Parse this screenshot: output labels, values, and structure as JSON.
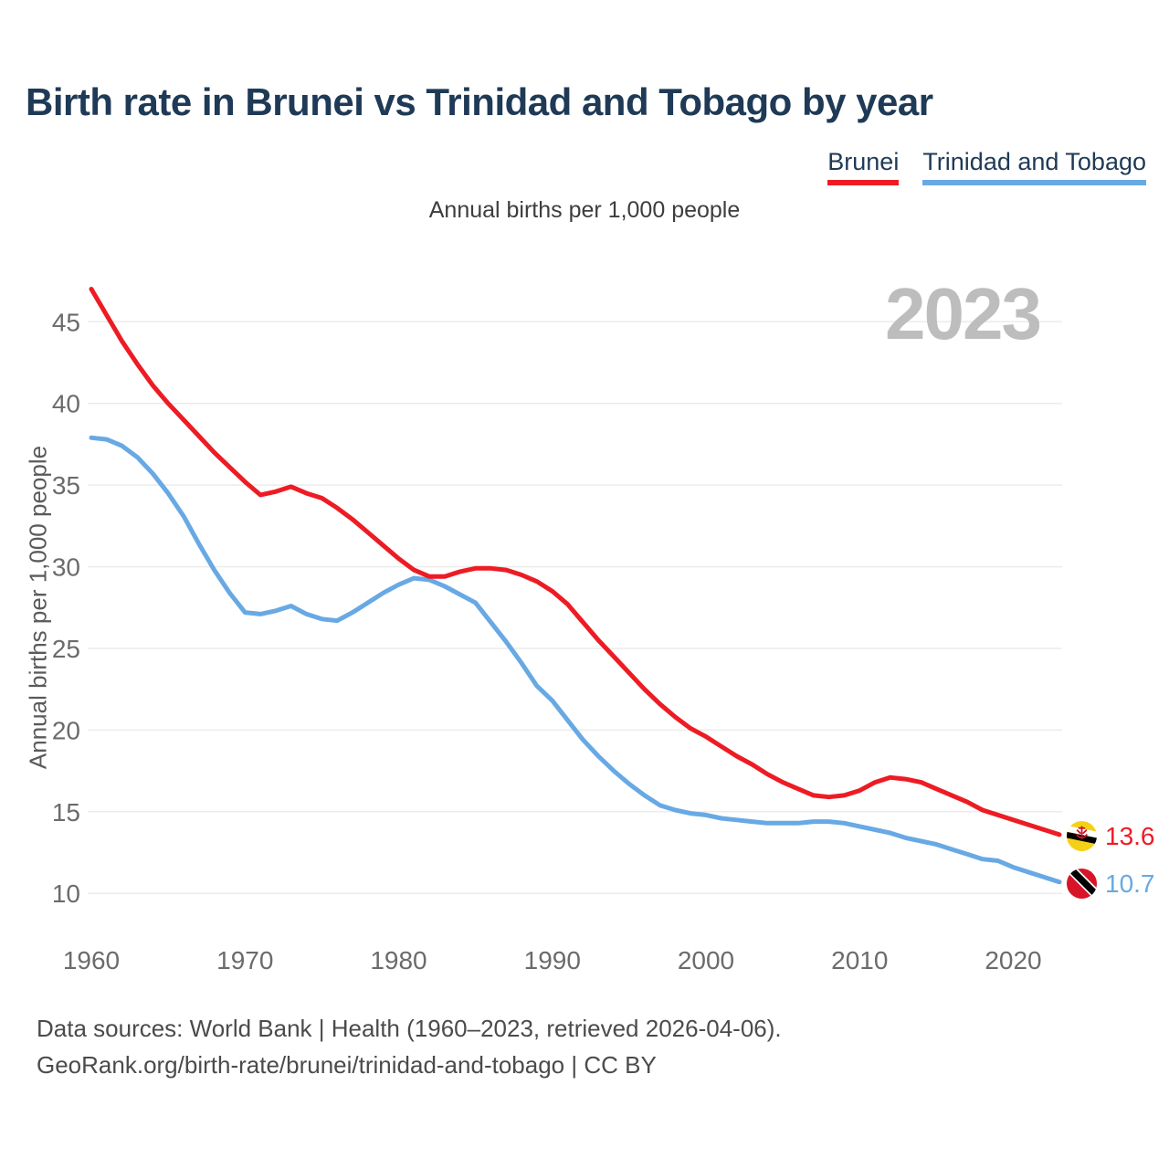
{
  "chart_data": {
    "type": "line",
    "title": "Birth rate in Brunei vs Trinidad and Tobago by year",
    "subtitle": "Annual births per 1,000 people",
    "ylabel": "Annual births per 1,000 people",
    "xlabel": "",
    "watermark_year": "2023",
    "grid": true,
    "legend_position": "top-right",
    "xlim": [
      1960,
      2023
    ],
    "ylim": [
      9,
      48
    ],
    "xticks": [
      1960,
      1970,
      1980,
      1990,
      2000,
      2010,
      2020
    ],
    "yticks": [
      10,
      15,
      20,
      25,
      30,
      35,
      40,
      45
    ],
    "x": [
      1960,
      1961,
      1962,
      1963,
      1964,
      1965,
      1966,
      1967,
      1968,
      1969,
      1970,
      1971,
      1972,
      1973,
      1974,
      1975,
      1976,
      1977,
      1978,
      1979,
      1980,
      1981,
      1982,
      1983,
      1984,
      1985,
      1986,
      1987,
      1988,
      1989,
      1990,
      1991,
      1992,
      1993,
      1994,
      1995,
      1996,
      1997,
      1998,
      1999,
      2000,
      2001,
      2002,
      2003,
      2004,
      2005,
      2006,
      2007,
      2008,
      2009,
      2010,
      2011,
      2012,
      2013,
      2014,
      2015,
      2016,
      2017,
      2018,
      2019,
      2020,
      2021,
      2022,
      2023
    ],
    "series": [
      {
        "name": "Brunei",
        "color": "#ed1c24",
        "end_label": "13.6",
        "end_value": 13.6,
        "flag": "brunei",
        "values": [
          47.0,
          45.4,
          43.8,
          42.4,
          41.1,
          40.0,
          39.0,
          38.0,
          37.0,
          36.1,
          35.2,
          34.4,
          34.6,
          34.9,
          34.5,
          34.2,
          33.6,
          32.9,
          32.1,
          31.3,
          30.5,
          29.8,
          29.4,
          29.4,
          29.7,
          29.9,
          29.9,
          29.8,
          29.5,
          29.1,
          28.5,
          27.7,
          26.6,
          25.5,
          24.5,
          23.5,
          22.5,
          21.6,
          20.8,
          20.1,
          19.6,
          19.0,
          18.4,
          17.9,
          17.3,
          16.8,
          16.4,
          16.0,
          15.9,
          16.0,
          16.3,
          16.8,
          17.1,
          17.0,
          16.8,
          16.4,
          16.0,
          15.6,
          15.1,
          14.8,
          14.5,
          14.2,
          13.9,
          13.6
        ]
      },
      {
        "name": "Trinidad and Tobago",
        "color": "#68a9e4",
        "end_label": "10.7",
        "end_value": 10.7,
        "flag": "trinidad-and-tobago",
        "values": [
          37.9,
          37.8,
          37.4,
          36.7,
          35.7,
          34.5,
          33.1,
          31.4,
          29.8,
          28.4,
          27.2,
          27.1,
          27.3,
          27.6,
          27.1,
          26.8,
          26.7,
          27.2,
          27.8,
          28.4,
          28.9,
          29.3,
          29.2,
          28.8,
          28.3,
          27.8,
          26.6,
          25.4,
          24.1,
          22.7,
          21.8,
          20.6,
          19.4,
          18.4,
          17.5,
          16.7,
          16.0,
          15.4,
          15.1,
          14.9,
          14.8,
          14.6,
          14.5,
          14.4,
          14.3,
          14.3,
          14.3,
          14.4,
          14.4,
          14.3,
          14.1,
          13.9,
          13.7,
          13.4,
          13.2,
          13.0,
          12.7,
          12.4,
          12.1,
          12.0,
          11.6,
          11.3,
          11.0,
          10.7
        ]
      }
    ]
  },
  "footer": {
    "line1": "Data sources: World Bank | Health (1960–2023, retrieved 2026-04-06).",
    "line2": "GeoRank.org/birth-rate/brunei/trinidad-and-tobago | CC BY"
  }
}
